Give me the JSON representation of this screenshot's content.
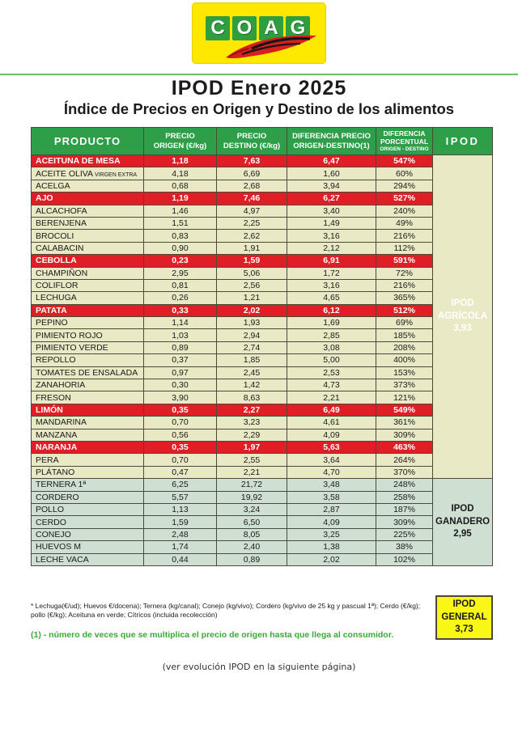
{
  "page": {
    "title": "IPOD Enero 2025",
    "subtitle": "Índice de Precios en Origen y Destino de los alimentos",
    "bottom_note": "(ver evolución IPOD en la siguiente página)"
  },
  "logo": {
    "name": "COAG",
    "letters": [
      "C",
      "O",
      "A",
      "G"
    ]
  },
  "table": {
    "columns": [
      {
        "l1": "PRODUCTO"
      },
      {
        "l1": "PRECIO",
        "l2": "ORIGEN (€/kg)"
      },
      {
        "l1": "PRECIO",
        "l2": "DESTINO (€/kg)"
      },
      {
        "l1": "DIFERENCIA PRECIO",
        "l2": "ORIGEN-DESTINO(1)"
      },
      {
        "l1": "DIFERENCIA",
        "l2": "PORCENTUAL",
        "l3": "ORIGEN - DESTINO"
      },
      {
        "l1": "IPOD"
      }
    ],
    "rows": [
      {
        "producto": "ACEITUNA DE MESA",
        "origen": "1,18",
        "destino": "7,63",
        "diferencia": "6,47",
        "porcentual": "547%",
        "section": "agricola",
        "highlight": true
      },
      {
        "producto": "ACEITE OLIVA",
        "note": "VIRGEN EXTRA",
        "origen": "4,18",
        "destino": "6,69",
        "diferencia": "1,60",
        "porcentual": "60%",
        "section": "agricola",
        "highlight": false
      },
      {
        "producto": "ACELGA",
        "origen": "0,68",
        "destino": "2,68",
        "diferencia": "3,94",
        "porcentual": "294%",
        "section": "agricola",
        "highlight": false
      },
      {
        "producto": "AJO",
        "origen": "1,19",
        "destino": "7,46",
        "diferencia": "6,27",
        "porcentual": "527%",
        "section": "agricola",
        "highlight": true
      },
      {
        "producto": "ALCACHOFA",
        "origen": "1,46",
        "destino": "4,97",
        "diferencia": "3,40",
        "porcentual": "240%",
        "section": "agricola",
        "highlight": false
      },
      {
        "producto": "BERENJENA",
        "origen": "1,51",
        "destino": "2,25",
        "diferencia": "1,49",
        "porcentual": "49%",
        "section": "agricola",
        "highlight": false
      },
      {
        "producto": "BROCOLI",
        "origen": "0,83",
        "destino": "2,62",
        "diferencia": "3,16",
        "porcentual": "216%",
        "section": "agricola",
        "highlight": false
      },
      {
        "producto": "CALABACIN",
        "origen": "0,90",
        "destino": "1,91",
        "diferencia": "2,12",
        "porcentual": "112%",
        "section": "agricola",
        "highlight": false
      },
      {
        "producto": "CEBOLLA",
        "origen": "0,23",
        "destino": "1,59",
        "diferencia": "6,91",
        "porcentual": "591%",
        "section": "agricola",
        "highlight": true
      },
      {
        "producto": "CHAMPIÑON",
        "origen": "2,95",
        "destino": "5,06",
        "diferencia": "1,72",
        "porcentual": "72%",
        "section": "agricola",
        "highlight": false
      },
      {
        "producto": "COLIFLOR",
        "origen": "0,81",
        "destino": "2,56",
        "diferencia": "3,16",
        "porcentual": "216%",
        "section": "agricola",
        "highlight": false
      },
      {
        "producto": "LECHUGA",
        "origen": "0,26",
        "destino": "1,21",
        "diferencia": "4,65",
        "porcentual": "365%",
        "section": "agricola",
        "highlight": false
      },
      {
        "producto": "PATATA",
        "origen": "0,33",
        "destino": "2,02",
        "diferencia": "6,12",
        "porcentual": "512%",
        "section": "agricola",
        "highlight": true
      },
      {
        "producto": "PEPINO",
        "origen": "1,14",
        "destino": "1,93",
        "diferencia": "1,69",
        "porcentual": "69%",
        "section": "agricola",
        "highlight": false
      },
      {
        "producto": "PIMIENTO ROJO",
        "origen": "1,03",
        "destino": "2,94",
        "diferencia": "2,85",
        "porcentual": "185%",
        "section": "agricola",
        "highlight": false
      },
      {
        "producto": "PIMIENTO VERDE",
        "origen": "0,89",
        "destino": "2,74",
        "diferencia": "3,08",
        "porcentual": "208%",
        "section": "agricola",
        "highlight": false
      },
      {
        "producto": "REPOLLO",
        "origen": "0,37",
        "destino": "1,85",
        "diferencia": "5,00",
        "porcentual": "400%",
        "section": "agricola",
        "highlight": false
      },
      {
        "producto": "TOMATES DE ENSALADA",
        "origen": "0,97",
        "destino": "2,45",
        "diferencia": "2,53",
        "porcentual": "153%",
        "section": "agricola",
        "highlight": false
      },
      {
        "producto": "ZANAHORIA",
        "origen": "0,30",
        "destino": "1,42",
        "diferencia": "4,73",
        "porcentual": "373%",
        "section": "agricola",
        "highlight": false
      },
      {
        "producto": "FRESON",
        "origen": "3,90",
        "destino": "8,63",
        "diferencia": "2,21",
        "porcentual": "121%",
        "section": "agricola",
        "highlight": false
      },
      {
        "producto": "LIMÓN",
        "origen": "0,35",
        "destino": "2,27",
        "diferencia": "6,49",
        "porcentual": "549%",
        "section": "agricola",
        "highlight": true
      },
      {
        "producto": "MANDARINA",
        "origen": "0,70",
        "destino": "3,23",
        "diferencia": "4,61",
        "porcentual": "361%",
        "section": "agricola",
        "highlight": false
      },
      {
        "producto": "MANZANA",
        "origen": "0,56",
        "destino": "2,29",
        "diferencia": "4,09",
        "porcentual": "309%",
        "section": "agricola",
        "highlight": false
      },
      {
        "producto": "NARANJA",
        "origen": "0,35",
        "destino": "1,97",
        "diferencia": "5,63",
        "porcentual": "463%",
        "section": "agricola",
        "highlight": true
      },
      {
        "producto": "PERA",
        "origen": "0,70",
        "destino": "2,55",
        "diferencia": "3,64",
        "porcentual": "264%",
        "section": "agricola",
        "highlight": false
      },
      {
        "producto": "PLÁTANO",
        "origen": "0,47",
        "destino": "2,21",
        "diferencia": "4,70",
        "porcentual": "370%",
        "section": "agricola",
        "highlight": false
      },
      {
        "producto": "TERNERA 1ª",
        "origen": "6,25",
        "destino": "21,72",
        "diferencia": "3,48",
        "porcentual": "248%",
        "section": "ganadero",
        "highlight": false
      },
      {
        "producto": "CORDERO",
        "origen": "5,57",
        "destino": "19,92",
        "diferencia": "3,58",
        "porcentual": "258%",
        "section": "ganadero",
        "highlight": false
      },
      {
        "producto": "POLLO",
        "origen": "1,13",
        "destino": "3,24",
        "diferencia": "2,87",
        "porcentual": "187%",
        "section": "ganadero",
        "highlight": false
      },
      {
        "producto": "CERDO",
        "origen": "1,59",
        "destino": "6,50",
        "diferencia": "4,09",
        "porcentual": "309%",
        "section": "ganadero",
        "highlight": false
      },
      {
        "producto": "CONEJO",
        "origen": "2,48",
        "destino": "8,05",
        "diferencia": "3,25",
        "porcentual": "225%",
        "section": "ganadero",
        "highlight": false
      },
      {
        "producto": "HUEVOS M",
        "origen": "1,74",
        "destino": "2,40",
        "diferencia": "1,38",
        "porcentual": "38%",
        "section": "ganadero",
        "highlight": false
      },
      {
        "producto": "LECHE VACA",
        "origen": "0,44",
        "destino": "0,89",
        "diferencia": "2,02",
        "porcentual": "102%",
        "section": "ganadero",
        "highlight": false
      }
    ],
    "ipod_groups": [
      {
        "id": "agricola",
        "start": 0,
        "span": 26,
        "lines": [
          "IPOD",
          "AGRÍCOLA",
          "3,93"
        ]
      },
      {
        "id": "ganadero",
        "start": 26,
        "span": 7,
        "lines": [
          "IPOD",
          "GANADERO",
          "2,95"
        ]
      }
    ]
  },
  "ipod_general": {
    "lines": [
      "IPOD",
      "GENERAL",
      "3,73"
    ]
  },
  "footnotes": {
    "units": "* Lechuga(€/ud);  Huevos €/docena); Ternera (kg/canal); Conejo (kg/vivo); Cordero (kg/vivo de 25 kg y pascual 1ª); Cerdo (€/kg); pollo (€/kg); Aceituna en verde; Cítricos (incluida recolección)",
    "definition": "(1) - número de veces que se multiplica el precio de origen hasta que llega al consumidor."
  },
  "colors": {
    "brand_green": "#2f9e48",
    "brand_yellow": "#ffe800",
    "highlight_red": "#e01e25",
    "agricola_row_bg": "#e9e9c6",
    "ganadero_row_bg": "#cfe0d2",
    "ipod_general_yellow": "#f8f715",
    "note_green": "#3aaa35"
  }
}
